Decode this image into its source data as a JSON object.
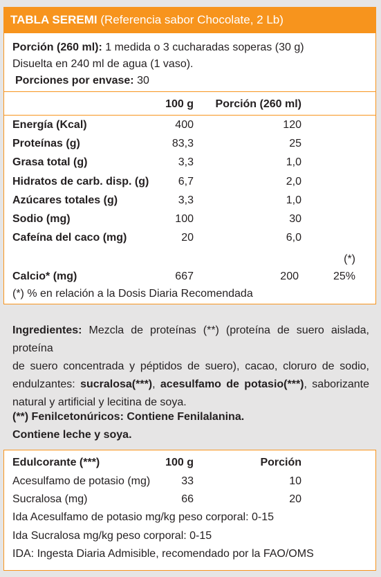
{
  "header": {
    "title_bold": "TABLA SEREMI",
    "title_rest": " (Referencia sabor Chocolate, 2 Lb)"
  },
  "serving": {
    "portion_label": "Porción (260 ml):",
    "portion_value": " 1 medida o 3 cucharadas  soperas (30 g)",
    "dissolved": "Disuelta en 240 ml de agua (1 vaso).",
    "per_container_label": "Porciones por envase:",
    "per_container_value": "30"
  },
  "nutrition": {
    "col_100g": "100 g",
    "col_portion": "Porción (260 ml)",
    "rows": [
      {
        "label": "Energía (Kcal)",
        "v100": "400",
        "vportion": "120"
      },
      {
        "label": "Proteínas (g)",
        "v100": "83,3",
        "vportion": "25"
      },
      {
        "label": "Grasa total (g)",
        "v100": "3,3",
        "vportion": "1,0"
      },
      {
        "label": "Hidratos de carb. disp. (g)",
        "v100": "6,7",
        "vportion": "2,0"
      },
      {
        "label": "Azúcares totales (g)",
        "v100": "3,3",
        "vportion": "1,0"
      },
      {
        "label": "Sodio (mg)",
        "v100": "100",
        "vportion": "30"
      },
      {
        "label": "Cafeína del caco (mg)",
        "v100": "20",
        "vportion": "6,0"
      }
    ],
    "calcio": {
      "label": "Calcio* (mg)",
      "v100": "667",
      "vportion": "200",
      "dd_marker": "(*)",
      "dd_pct": "25%"
    },
    "footnote": "(*) % en relación a la Dosis Diaria Recomendada"
  },
  "ingredients": {
    "label": "Ingredientes:",
    "line1": " Mezcla de proteínas (**) (proteína de suero aislada, proteína",
    "line2": "de suero concentrada y péptidos de suero), cacao, cloruro de sodio,",
    "line3_a": "endulzantes: ",
    "line3_b": "sucralosa(***)",
    "line3_c": ", ",
    "line3_d": "acesulfamo de potasio(***)",
    "line3_e": ", saborizante",
    "line4": "natural y artificial y lecitina de soya."
  },
  "warnings": {
    "line1": "(**) Fenilcetonúricos: Contiene Fenilalanina.",
    "line2": "Contiene leche y soya."
  },
  "sweetener": {
    "col_label": "Edulcorante (***)",
    "col_100g": "100 g",
    "col_portion": "Porción",
    "rows": [
      {
        "label": "Acesulfamo de potasio (mg)",
        "v100": "33",
        "vportion": "10"
      },
      {
        "label": "Sucralosa (mg)",
        "v100": "66",
        "vportion": "20"
      }
    ],
    "ida1": "Ida Acesulfamo de potasio mg/kg peso corporal: 0-15",
    "ida2": "Ida Sucralosa mg/kg peso corporal: 0-15",
    "ida3": "IDA: Ingesta Diaria Admisible, recomendado por la FAO/OMS"
  },
  "colors": {
    "accent": "#f7941d",
    "background": "#e6e5e5",
    "box": "#ffffff"
  }
}
